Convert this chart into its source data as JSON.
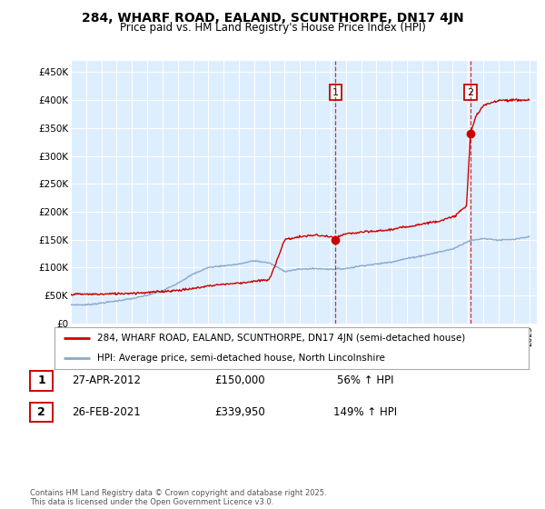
{
  "title": "284, WHARF ROAD, EALAND, SCUNTHORPE, DN17 4JN",
  "subtitle": "Price paid vs. HM Land Registry's House Price Index (HPI)",
  "legend_line1": "284, WHARF ROAD, EALAND, SCUNTHORPE, DN17 4JN (semi-detached house)",
  "legend_line2": "HPI: Average price, semi-detached house, North Lincolnshire",
  "transaction1_label": "1",
  "transaction1_date": "27-APR-2012",
  "transaction1_price": "£150,000",
  "transaction1_pct": "56% ↑ HPI",
  "transaction2_label": "2",
  "transaction2_date": "26-FEB-2021",
  "transaction2_price": "£339,950",
  "transaction2_pct": "149% ↑ HPI",
  "footer": "Contains HM Land Registry data © Crown copyright and database right 2025.\nThis data is licensed under the Open Government Licence v3.0.",
  "background_color": "#ffffff",
  "plot_bg_color": "#ddeeff",
  "grid_color": "#ffffff",
  "red_color": "#cc0000",
  "blue_color": "#88aacc",
  "ylim": [
    0,
    470000
  ],
  "yticks": [
    0,
    50000,
    100000,
    150000,
    200000,
    250000,
    300000,
    350000,
    400000,
    450000
  ],
  "ytick_labels": [
    "£0",
    "£50K",
    "£100K",
    "£150K",
    "£200K",
    "£250K",
    "£300K",
    "£350K",
    "£400K",
    "£450K"
  ],
  "hpi_years": [
    1995,
    1996,
    1997,
    1998,
    1999,
    2000,
    2001,
    2002,
    2003,
    2004,
    2005,
    2006,
    2007,
    2008,
    2009,
    2010,
    2011,
    2012,
    2013,
    2014,
    2015,
    2016,
    2017,
    2018,
    2019,
    2020,
    2021,
    2022,
    2023,
    2024,
    2025
  ],
  "hpi_values": [
    33000,
    33000,
    36000,
    40000,
    44000,
    50000,
    58000,
    72000,
    88000,
    100000,
    103000,
    106000,
    112000,
    108000,
    93000,
    97000,
    98000,
    97000,
    98000,
    103000,
    106000,
    110000,
    116000,
    121000,
    127000,
    133000,
    147000,
    152000,
    149000,
    150000,
    155000
  ],
  "price_years": [
    1995,
    1996,
    1997,
    1998,
    1999,
    2000,
    2001,
    2002,
    2003,
    2004,
    2005,
    2006,
    2007,
    2008,
    2009,
    2010,
    2011,
    2012.0,
    2012.33,
    2012.5,
    2013,
    2014,
    2015,
    2016,
    2017,
    2018,
    2019,
    2020,
    2020.9,
    2021.15,
    2021.5,
    2022,
    2023,
    2024,
    2025
  ],
  "price_values": [
    52000,
    52000,
    52000,
    53000,
    54000,
    55000,
    57000,
    59000,
    62000,
    67000,
    70000,
    72000,
    75000,
    78000,
    150000,
    155000,
    158000,
    155000,
    150000,
    155000,
    160000,
    163000,
    165000,
    168000,
    173000,
    178000,
    183000,
    190000,
    210000,
    339950,
    370000,
    390000,
    400000,
    400000,
    400000
  ],
  "transaction1_year": 2012.33,
  "transaction1_value": 150000,
  "transaction2_year": 2021.15,
  "transaction2_value": 339950,
  "xmin": 1995,
  "xmax": 2025.5
}
